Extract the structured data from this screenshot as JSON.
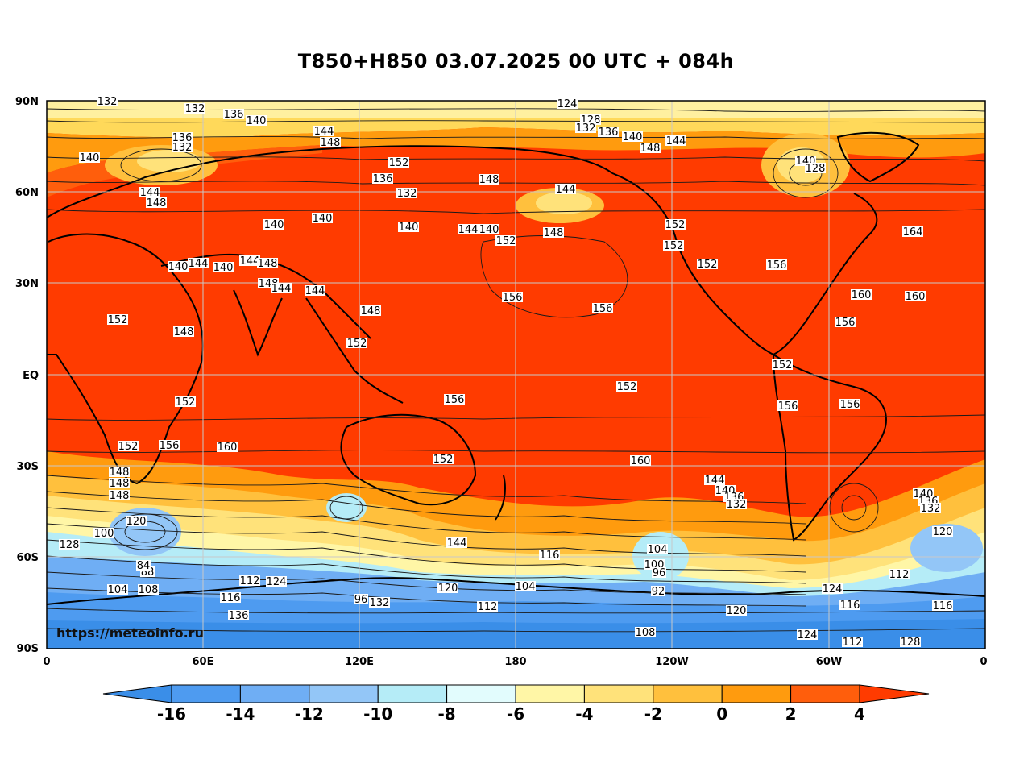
{
  "title": "T850+H850 03.07.2025 00 UTC + 084h",
  "watermark": "https://meteoinfo.ru",
  "map": {
    "lat_labels": [
      "90N",
      "60N",
      "30N",
      "EQ",
      "30S",
      "60S",
      "90S"
    ],
    "lon_labels": [
      "0",
      "60E",
      "120E",
      "180",
      "120W",
      "60W",
      "0"
    ]
  },
  "contour_labels": [
    "128",
    "132",
    "136",
    "140",
    "144",
    "148",
    "136",
    "132",
    "140",
    "144",
    "148",
    "152",
    "140",
    "144",
    "140",
    "144",
    "148",
    "148",
    "144",
    "140",
    "140",
    "144",
    "140",
    "152",
    "148",
    "144",
    "136",
    "132",
    "140",
    "148",
    "144",
    "148",
    "152",
    "148",
    "152",
    "152",
    "156",
    "156",
    "160",
    "152",
    "148",
    "152",
    "156",
    "156",
    "160",
    "152",
    "124",
    "128",
    "136",
    "132",
    "140",
    "148",
    "144",
    "152",
    "152",
    "152",
    "156",
    "160",
    "156",
    "160",
    "164",
    "152",
    "156",
    "156",
    "148",
    "144",
    "140",
    "136",
    "132",
    "148",
    "152",
    "144",
    "140",
    "136",
    "132",
    "128",
    "124",
    "120",
    "116",
    "112",
    "108",
    "104",
    "100",
    "96",
    "92",
    "88",
    "84",
    "120",
    "116",
    "112",
    "108",
    "104",
    "100",
    "128",
    "124",
    "120",
    "116",
    "112",
    "104",
    "96",
    "132",
    "136",
    "140",
    "128",
    "124",
    "120",
    "116",
    "112",
    "132"
  ],
  "colorbar": {
    "ticks": [
      "-16",
      "-14",
      "-12",
      "-10",
      "-8",
      "-6",
      "-4",
      "-2",
      "0",
      "2",
      "4"
    ],
    "colors": [
      "#3a8ee8",
      "#4e9bf0",
      "#6faef4",
      "#93c6f7",
      "#b5ecf7",
      "#e2fcfd",
      "#fff6a6",
      "#ffe27a",
      "#ffc03d",
      "#ff9b0e",
      "#ff5e0c",
      "#ff3b00"
    ]
  }
}
